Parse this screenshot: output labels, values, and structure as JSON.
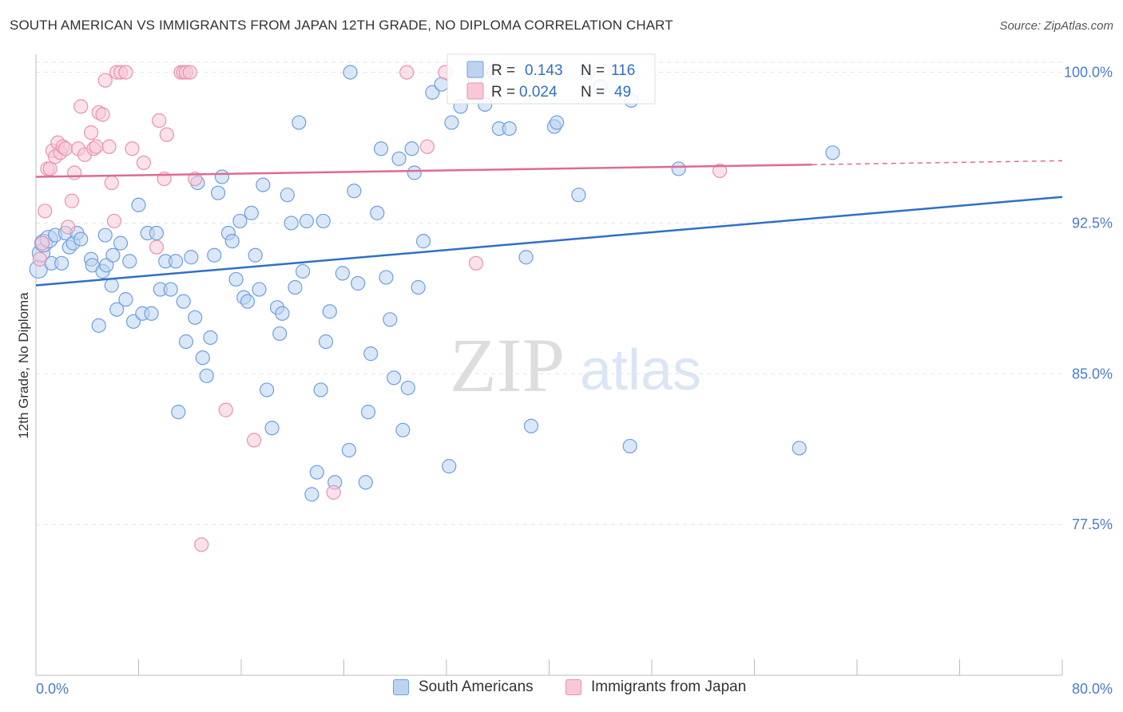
{
  "header": {
    "title": "SOUTH AMERICAN VS IMMIGRANTS FROM JAPAN 12TH GRADE, NO DIPLOMA CORRELATION CHART",
    "source": "Source: ZipAtlas.com"
  },
  "watermark": {
    "zip": "ZIP",
    "atlas": "atlas"
  },
  "colors": {
    "blue_fill": "#bcd4f2",
    "blue_stroke": "#6f9fdc",
    "blue_line": "#2f6fc9",
    "pink_fill": "#f8c8d8",
    "pink_stroke": "#e892b0",
    "pink_line": "#e06a90",
    "axis_value_text": "#4a7bd0"
  },
  "legend_box": {
    "r_label": "R =",
    "n_label": "N =",
    "series": [
      {
        "r": "0.143",
        "n": "116"
      },
      {
        "r": "0.024",
        "n": "49"
      }
    ]
  },
  "bottom_legend": [
    "South Americans",
    "Immigrants from Japan"
  ],
  "chart_data": {
    "type": "scatter",
    "title": "SOUTH AMERICAN VS IMMIGRANTS FROM JAPAN 12TH GRADE, NO DIPLOMA CORRELATION CHART",
    "xlabel": "",
    "ylabel": "12th Grade, No Diploma",
    "xlim": [
      0,
      80
    ],
    "ylim": [
      70,
      100.5
    ],
    "x_tick_labels": [
      "0.0%",
      "80.0%"
    ],
    "y_ticks": [
      77.5,
      85.0,
      92.5,
      100.0
    ],
    "y_tick_labels": [
      "77.5%",
      "85.0%",
      "92.5%",
      "100.0%"
    ],
    "grid": true,
    "legend_position": "top-center",
    "series": [
      {
        "name": "South Americans",
        "r": 0.143,
        "n": 116,
        "trend": {
          "x": [
            0,
            80
          ],
          "y": [
            89.4,
            93.8
          ],
          "dashed_from": null
        },
        "points": [
          [
            0.2,
            90.2
          ],
          [
            0.4,
            91.0
          ],
          [
            0.6,
            91.5
          ],
          [
            1.0,
            91.7
          ],
          [
            1.2,
            90.5
          ],
          [
            1.5,
            91.9
          ],
          [
            2.0,
            90.5
          ],
          [
            2.3,
            92.0
          ],
          [
            2.6,
            91.3
          ],
          [
            2.9,
            91.5
          ],
          [
            3.2,
            92.0
          ],
          [
            3.5,
            91.7
          ],
          [
            4.3,
            90.7
          ],
          [
            4.4,
            90.4
          ],
          [
            4.9,
            87.4
          ],
          [
            5.2,
            90.1
          ],
          [
            5.4,
            91.9
          ],
          [
            5.5,
            90.4
          ],
          [
            5.9,
            89.4
          ],
          [
            6.0,
            90.9
          ],
          [
            6.3,
            88.2
          ],
          [
            6.6,
            91.5
          ],
          [
            7.0,
            88.7
          ],
          [
            7.3,
            90.6
          ],
          [
            7.6,
            87.6
          ],
          [
            8.0,
            93.4
          ],
          [
            8.3,
            88.0
          ],
          [
            8.7,
            92.0
          ],
          [
            9.0,
            88.0
          ],
          [
            9.4,
            92.0
          ],
          [
            9.7,
            89.2
          ],
          [
            10.1,
            90.6
          ],
          [
            10.5,
            89.2
          ],
          [
            10.9,
            90.6
          ],
          [
            11.1,
            83.1
          ],
          [
            11.5,
            88.6
          ],
          [
            11.7,
            86.6
          ],
          [
            12.1,
            90.8
          ],
          [
            12.4,
            87.8
          ],
          [
            12.6,
            94.5
          ],
          [
            13.0,
            85.8
          ],
          [
            13.3,
            84.9
          ],
          [
            13.6,
            86.8
          ],
          [
            13.9,
            90.9
          ],
          [
            14.2,
            94.0
          ],
          [
            14.5,
            94.8
          ],
          [
            15.0,
            92.0
          ],
          [
            15.3,
            91.6
          ],
          [
            15.6,
            89.7
          ],
          [
            15.9,
            92.6
          ],
          [
            16.2,
            88.8
          ],
          [
            16.5,
            88.6
          ],
          [
            16.8,
            93.0
          ],
          [
            17.1,
            90.9
          ],
          [
            17.4,
            89.2
          ],
          [
            17.7,
            94.4
          ],
          [
            18.0,
            84.2
          ],
          [
            18.4,
            82.3
          ],
          [
            18.8,
            88.3
          ],
          [
            19.0,
            87.0
          ],
          [
            19.2,
            88.0
          ],
          [
            19.6,
            93.9
          ],
          [
            19.9,
            92.5
          ],
          [
            20.2,
            89.3
          ],
          [
            20.5,
            97.5
          ],
          [
            20.8,
            90.1
          ],
          [
            21.1,
            92.6
          ],
          [
            21.5,
            79.0
          ],
          [
            21.9,
            80.1
          ],
          [
            22.2,
            84.2
          ],
          [
            22.4,
            92.6
          ],
          [
            22.6,
            86.6
          ],
          [
            22.9,
            88.1
          ],
          [
            23.3,
            79.6
          ],
          [
            23.9,
            90.0
          ],
          [
            24.4,
            81.2
          ],
          [
            24.8,
            94.1
          ],
          [
            25.1,
            89.5
          ],
          [
            25.7,
            79.6
          ],
          [
            25.9,
            83.1
          ],
          [
            26.1,
            86.0
          ],
          [
            26.6,
            93.0
          ],
          [
            26.9,
            96.2
          ],
          [
            27.3,
            89.8
          ],
          [
            27.6,
            87.7
          ],
          [
            27.9,
            84.8
          ],
          [
            28.3,
            95.7
          ],
          [
            28.6,
            82.2
          ],
          [
            29.0,
            84.3
          ],
          [
            29.3,
            96.2
          ],
          [
            29.5,
            95.0
          ],
          [
            29.8,
            89.3
          ],
          [
            30.2,
            91.6
          ],
          [
            30.9,
            99.0
          ],
          [
            31.6,
            99.4
          ],
          [
            32.2,
            80.4
          ],
          [
            32.4,
            97.5
          ],
          [
            33.1,
            98.3
          ],
          [
            34.2,
            99.7
          ],
          [
            35.0,
            98.4
          ],
          [
            36.1,
            97.2
          ],
          [
            36.9,
            97.2
          ],
          [
            38.2,
            90.8
          ],
          [
            38.6,
            82.4
          ],
          [
            40.4,
            97.3
          ],
          [
            40.6,
            97.5
          ],
          [
            42.3,
            93.9
          ],
          [
            43.0,
            100.0
          ],
          [
            46.3,
            81.4
          ],
          [
            46.4,
            98.6
          ],
          [
            50.1,
            95.2
          ],
          [
            59.5,
            81.3
          ],
          [
            62.1,
            96.0
          ],
          [
            24.5,
            100.0
          ],
          [
            35.7,
            100.0
          ],
          [
            44.0,
            99.3
          ]
        ]
      },
      {
        "name": "Immigrants from Japan",
        "r": 0.024,
        "n": 49,
        "trend": {
          "x": [
            0,
            80
          ],
          "y": [
            94.8,
            95.6
          ],
          "dashed_from": 60.5
        },
        "points": [
          [
            0.3,
            90.7
          ],
          [
            0.5,
            91.5
          ],
          [
            0.7,
            93.1
          ],
          [
            0.9,
            95.2
          ],
          [
            1.1,
            95.2
          ],
          [
            1.3,
            96.1
          ],
          [
            1.5,
            95.8
          ],
          [
            1.7,
            96.5
          ],
          [
            1.9,
            96.0
          ],
          [
            2.1,
            96.3
          ],
          [
            2.3,
            96.2
          ],
          [
            2.5,
            92.3
          ],
          [
            2.8,
            93.6
          ],
          [
            3.0,
            95.0
          ],
          [
            3.3,
            96.2
          ],
          [
            3.5,
            98.3
          ],
          [
            3.8,
            95.9
          ],
          [
            4.3,
            97.0
          ],
          [
            4.5,
            96.2
          ],
          [
            4.7,
            96.3
          ],
          [
            4.9,
            98.0
          ],
          [
            5.2,
            97.9
          ],
          [
            5.4,
            99.6
          ],
          [
            5.7,
            96.3
          ],
          [
            5.9,
            94.5
          ],
          [
            6.1,
            92.6
          ],
          [
            6.3,
            100.0
          ],
          [
            6.6,
            100.0
          ],
          [
            7.0,
            100.0
          ],
          [
            7.5,
            96.2
          ],
          [
            8.4,
            95.5
          ],
          [
            9.4,
            91.3
          ],
          [
            9.6,
            97.6
          ],
          [
            10.0,
            94.7
          ],
          [
            10.2,
            96.9
          ],
          [
            11.3,
            100.0
          ],
          [
            11.5,
            100.0
          ],
          [
            11.7,
            100.0
          ],
          [
            12.0,
            100.0
          ],
          [
            12.4,
            94.7
          ],
          [
            12.9,
            76.5
          ],
          [
            14.8,
            83.2
          ],
          [
            17.0,
            81.7
          ],
          [
            23.2,
            79.1
          ],
          [
            28.9,
            100.0
          ],
          [
            30.5,
            96.3
          ],
          [
            31.9,
            100.0
          ],
          [
            34.3,
            90.5
          ],
          [
            53.3,
            95.1
          ]
        ]
      }
    ]
  }
}
